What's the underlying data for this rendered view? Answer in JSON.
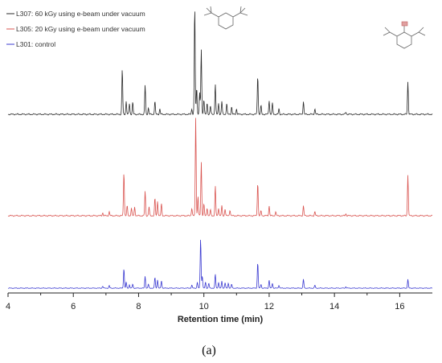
{
  "chart_data": {
    "type": "line",
    "title": "",
    "panel_label": "(a)",
    "xlabel": "Retention time (min)",
    "ylabel": "",
    "xlim": [
      4,
      17
    ],
    "x_ticks": [
      4,
      6,
      8,
      10,
      12,
      14,
      16
    ],
    "grid": false,
    "legend_position": "top-left",
    "colors": {
      "axis": "#222222",
      "text": "#222222"
    },
    "series": [
      {
        "name": "L307: 60 kGy using e-beam under vacuum",
        "color": "#2b2b2b",
        "peaks": [
          [
            7.5,
            0.42
          ],
          [
            7.62,
            0.12
          ],
          [
            7.72,
            0.1
          ],
          [
            7.82,
            0.11
          ],
          [
            8.2,
            0.27
          ],
          [
            8.3,
            0.06
          ],
          [
            8.5,
            0.12
          ],
          [
            8.65,
            0.05
          ],
          [
            9.63,
            0.05
          ],
          [
            9.72,
            1.0
          ],
          [
            9.78,
            0.25
          ],
          [
            9.87,
            0.2
          ],
          [
            9.92,
            0.6
          ],
          [
            10.0,
            0.14
          ],
          [
            10.1,
            0.1
          ],
          [
            10.2,
            0.08
          ],
          [
            10.35,
            0.28
          ],
          [
            10.45,
            0.1
          ],
          [
            10.55,
            0.12
          ],
          [
            10.7,
            0.1
          ],
          [
            10.85,
            0.07
          ],
          [
            11.0,
            0.05
          ],
          [
            11.65,
            0.36
          ],
          [
            11.75,
            0.08
          ],
          [
            12.0,
            0.13
          ],
          [
            12.1,
            0.1
          ],
          [
            12.3,
            0.05
          ],
          [
            13.05,
            0.12
          ],
          [
            13.4,
            0.05
          ],
          [
            14.35,
            0.02
          ],
          [
            16.25,
            0.3
          ]
        ]
      },
      {
        "name": "L305: 20 kGy using e-beam under vacuum",
        "color": "#d9534f",
        "peaks": [
          [
            6.9,
            0.03
          ],
          [
            7.1,
            0.04
          ],
          [
            7.55,
            0.45
          ],
          [
            7.65,
            0.1
          ],
          [
            7.78,
            0.08
          ],
          [
            7.88,
            0.09
          ],
          [
            8.2,
            0.25
          ],
          [
            8.32,
            0.09
          ],
          [
            8.5,
            0.18
          ],
          [
            8.58,
            0.15
          ],
          [
            8.7,
            0.12
          ],
          [
            9.63,
            0.08
          ],
          [
            9.75,
            1.0
          ],
          [
            9.82,
            0.2
          ],
          [
            9.92,
            0.55
          ],
          [
            10.0,
            0.12
          ],
          [
            10.1,
            0.08
          ],
          [
            10.2,
            0.06
          ],
          [
            10.35,
            0.3
          ],
          [
            10.45,
            0.08
          ],
          [
            10.55,
            0.1
          ],
          [
            10.65,
            0.07
          ],
          [
            10.8,
            0.06
          ],
          [
            11.65,
            0.34
          ],
          [
            11.75,
            0.05
          ],
          [
            12.0,
            0.1
          ],
          [
            12.2,
            0.04
          ],
          [
            13.05,
            0.1
          ],
          [
            13.4,
            0.04
          ],
          [
            14.35,
            0.02
          ],
          [
            16.25,
            0.42
          ]
        ]
      },
      {
        "name": "L301: control",
        "color": "#3b3bd1",
        "peaks": [
          [
            6.9,
            0.04
          ],
          [
            7.1,
            0.05
          ],
          [
            7.55,
            0.4
          ],
          [
            7.62,
            0.12
          ],
          [
            7.72,
            0.07
          ],
          [
            7.82,
            0.08
          ],
          [
            8.2,
            0.24
          ],
          [
            8.3,
            0.08
          ],
          [
            8.5,
            0.22
          ],
          [
            8.58,
            0.17
          ],
          [
            8.7,
            0.15
          ],
          [
            9.63,
            0.06
          ],
          [
            9.8,
            0.12
          ],
          [
            9.9,
            1.0
          ],
          [
            9.95,
            0.25
          ],
          [
            10.05,
            0.12
          ],
          [
            10.15,
            0.1
          ],
          [
            10.35,
            0.28
          ],
          [
            10.45,
            0.12
          ],
          [
            10.55,
            0.14
          ],
          [
            10.65,
            0.11
          ],
          [
            10.75,
            0.1
          ],
          [
            10.85,
            0.08
          ],
          [
            11.65,
            0.52
          ],
          [
            11.75,
            0.08
          ],
          [
            12.0,
            0.16
          ],
          [
            12.1,
            0.1
          ],
          [
            12.3,
            0.06
          ],
          [
            13.05,
            0.18
          ],
          [
            13.4,
            0.06
          ],
          [
            14.35,
            0.03
          ],
          [
            16.25,
            0.18
          ]
        ]
      }
    ]
  }
}
